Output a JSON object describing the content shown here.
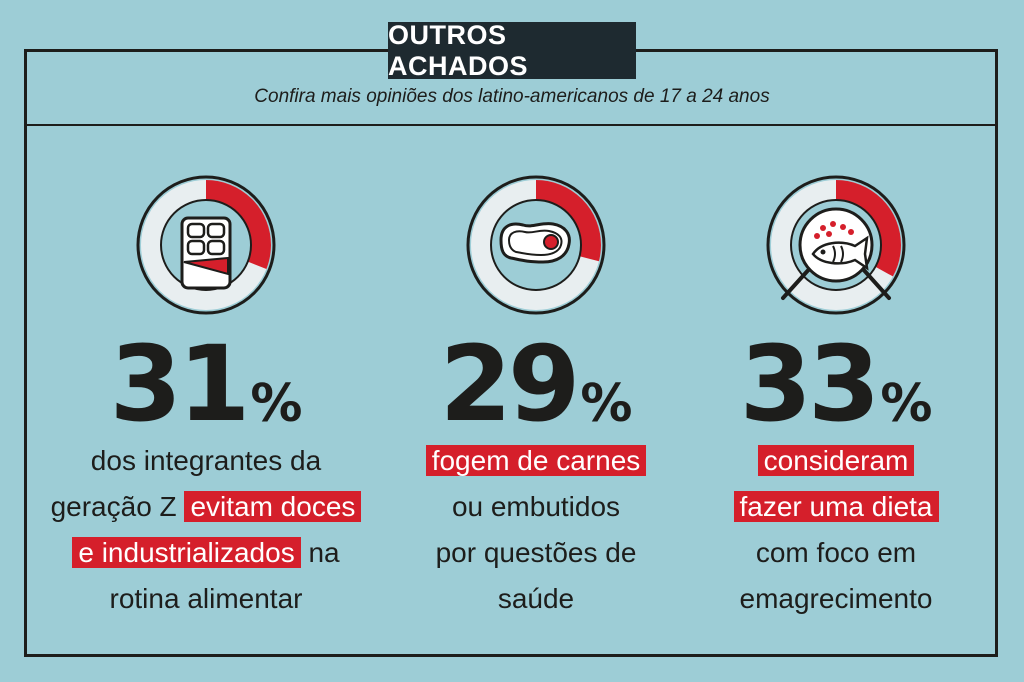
{
  "header": {
    "title": "OUTROS ACHADOS",
    "subtitle": "Confira mais opiniões dos latino-americanos de 17 a 24 anos"
  },
  "stats": [
    {
      "icon": "chocolate-bar-icon",
      "value": "31",
      "percent_sign": "%",
      "fraction": 0.31,
      "line1_pre": "dos integrantes da",
      "line2_pre": "geração Z ",
      "highlight1": "evitam doces",
      "highlight2": "e industrializados",
      "line3_post": " na",
      "line4": "rotina alimentar"
    },
    {
      "icon": "steak-icon",
      "value": "29",
      "percent_sign": "%",
      "fraction": 0.29,
      "highlight1": "fogem de carnes",
      "line2": "ou embutidos",
      "line3": "por questões de",
      "line4": "saúde"
    },
    {
      "icon": "fish-plate-icon",
      "value": "33",
      "percent_sign": "%",
      "fraction": 0.33,
      "highlight1": "consideram",
      "highlight2": "fazer uma dieta",
      "line3": "com foco em",
      "line4": "emagrecimento"
    }
  ],
  "colors": {
    "background": "#9dcdd6",
    "accent": "#d51f2b",
    "ink": "#1d1d1b"
  }
}
